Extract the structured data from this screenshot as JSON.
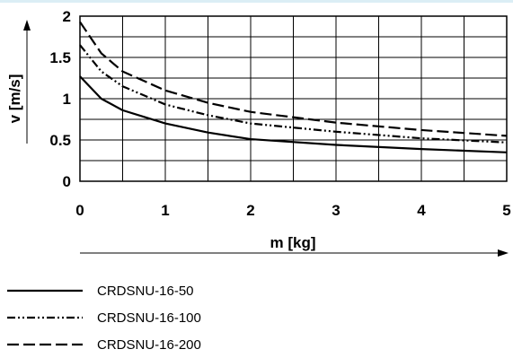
{
  "chart_data": {
    "type": "line",
    "title": "",
    "xlabel": "m [kg]",
    "ylabel": "v [m/s]",
    "xlim": [
      0,
      5
    ],
    "ylim": [
      0,
      2
    ],
    "grid": true,
    "x_ticks": [
      "0",
      "1",
      "2",
      "3",
      "4",
      "5"
    ],
    "y_ticks": [
      "0",
      "0.5",
      "1",
      "1.5",
      "2"
    ],
    "legend_position": "bottom-left",
    "series": [
      {
        "name": "CRDSNU-16-50",
        "style": "solid",
        "x": [
          0,
          0.25,
          0.5,
          1,
          1.5,
          2,
          3,
          4,
          5
        ],
        "y": [
          1.27,
          1.0,
          0.86,
          0.7,
          0.59,
          0.51,
          0.44,
          0.39,
          0.35
        ]
      },
      {
        "name": "CRDSNU-16-100",
        "style": "dash-dot-dot",
        "x": [
          0,
          0.25,
          0.5,
          1,
          1.5,
          2,
          3,
          4,
          5
        ],
        "y": [
          1.65,
          1.33,
          1.15,
          0.93,
          0.8,
          0.7,
          0.6,
          0.52,
          0.47
        ]
      },
      {
        "name": "CRDSNU-16-200",
        "style": "dashed",
        "x": [
          0,
          0.25,
          0.5,
          1,
          1.5,
          2,
          3,
          4,
          5
        ],
        "y": [
          1.93,
          1.55,
          1.33,
          1.1,
          0.95,
          0.84,
          0.71,
          0.62,
          0.55
        ]
      }
    ]
  }
}
